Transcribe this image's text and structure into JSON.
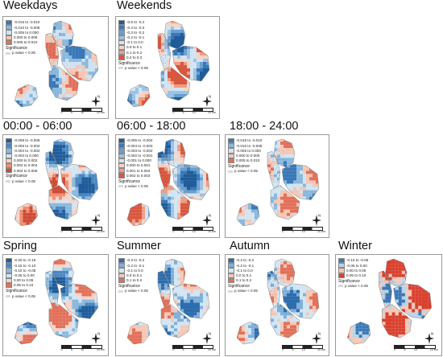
{
  "panels": [
    {
      "title": "Weekdays",
      "legend": [
        "-0.015 to -0.010",
        "-0.010 to -0.005",
        "-0.005 to 0.000",
        "0.000 to 0.005",
        "0.005 to 0.010"
      ],
      "colors": [
        "#3a78b8",
        "#8ab8dd",
        "#cfe2f1",
        "#f6c7b5",
        "#e2715a"
      ],
      "significance_title": "Significance",
      "significance_label": "p value < 0.05",
      "north": "N",
      "scale": [
        "0",
        "5",
        "10",
        "20 km"
      ]
    },
    {
      "title": "Weekends",
      "legend": [
        "-0.5 to -0.4",
        "-0.4 to -0.3",
        "-0.3 to -0.2",
        "-0.2 to -0.1",
        "-0.1 to 0.0",
        "0.0 to 0.1",
        "0.1 to 0.2",
        "0.2 to 0.3"
      ],
      "colors": [
        "#1f5c99",
        "#3a78b8",
        "#6a9fcf",
        "#9cc3e3",
        "#d2e5f3",
        "#f7d3c5",
        "#ef9c84",
        "#d9573f"
      ],
      "significance_title": "Significance",
      "significance_label": "p value < 0.05",
      "north": "N",
      "scale": [
        "0",
        "5",
        "10",
        "20 km"
      ]
    },
    {
      "title": "00:00 - 06:00",
      "legend": [
        "-0.008 to -0.006",
        "-0.006 to -0.004",
        "-0.004 to -0.002",
        "-0.002 to 0.000",
        "0.000 to 0.002",
        "0.002 to 0.004",
        "0.004 to 0.006"
      ],
      "colors": [
        "#1f5c99",
        "#4a87c2",
        "#8ab8dd",
        "#d2e5f3",
        "#f7d3c5",
        "#ec8f74",
        "#cf4a35"
      ],
      "significance_title": "Significance",
      "significance_label": "p value < 0.05",
      "north": "N",
      "scale": [
        "0",
        "5",
        "10",
        "20 km"
      ]
    },
    {
      "title": "06:00 - 18:00",
      "legend": [
        "-0.005 to -0.004",
        "-0.004 to -0.003",
        "-0.003 to -0.002",
        "-0.002 to -0.001",
        "-0.001 to 0.000",
        "0.000 to 0.001",
        "0.001 to 0.002",
        "0.002 to 0.003"
      ],
      "colors": [
        "#1f5c99",
        "#3a78b8",
        "#6a9fcf",
        "#9cc3e3",
        "#d2e5f3",
        "#f7d3c5",
        "#ef9c84",
        "#d9573f"
      ],
      "significance_title": "Significance",
      "significance_label": "p value < 0.05",
      "north": "N",
      "scale": [
        "0",
        "5",
        "10",
        "20 km"
      ]
    },
    {
      "title": "18:00 - 24:00",
      "legend": [
        "-0.015 to -0.010",
        "-0.010 to -0.005",
        "-0.005 to 0.000",
        "0.000 to 0.005",
        "0.005 to 0.010"
      ],
      "colors": [
        "#3a78b8",
        "#8ab8dd",
        "#d2e5f3",
        "#f6c7b5",
        "#e2715a"
      ],
      "significance_title": "Significance",
      "significance_label": "p value < 0.05",
      "north": "N",
      "scale": [
        "0",
        "5",
        "10",
        "20 km"
      ]
    },
    {
      "title": "Spring",
      "legend": [
        "-0.20 to -0.15",
        "-0.15 to -0.10",
        "-0.10 to -0.05",
        "-0.05 to 0.00",
        "0.00 to 0.05",
        "0.05 to 0.10"
      ],
      "colors": [
        "#1f5c99",
        "#4a87c2",
        "#8ab8dd",
        "#d2e5f3",
        "#f7d3c5",
        "#e2715a"
      ],
      "significance_title": "Significance",
      "significance_label": "p value < 0.05",
      "north": "N",
      "scale": [
        "0",
        "5",
        "10",
        "20 km"
      ]
    },
    {
      "title": "Summer",
      "legend": [
        "-0.3 to -0.2",
        "-0.2 to -0.1",
        "-0.1 to 0.0",
        "0.0 to 0.1",
        "0.1 to 0.2"
      ],
      "colors": [
        "#2e6dad",
        "#7fb0da",
        "#d2e5f3",
        "#f6c7b5",
        "#e2715a"
      ],
      "significance_title": "Significance",
      "significance_label": "p value < 0.05",
      "north": "N",
      "scale": [
        "0",
        "5",
        "10",
        "20 km"
      ]
    },
    {
      "title": "Autumn",
      "legend": [
        "-0.3 to -0.2",
        "-0.2 to -0.1",
        "-0.1 to 0.0",
        "0.0 to 0.1",
        "0.1 to 0.2"
      ],
      "colors": [
        "#2e6dad",
        "#7fb0da",
        "#d2e5f3",
        "#f6c7b5",
        "#e2715a"
      ],
      "significance_title": "Significance",
      "significance_label": "p value < 0.05",
      "north": "N",
      "scale": [
        "0",
        "5",
        "10",
        "20 km"
      ]
    },
    {
      "title": "Winter",
      "legend": [
        "-0.10 to -0.05",
        "-0.05 to 0.00",
        "0.00 to 0.05",
        "0.05 to 0.10"
      ],
      "colors": [
        "#3a78b8",
        "#b7d4ec",
        "#f6c7b5",
        "#d9402e"
      ],
      "significance_title": "Significance",
      "significance_label": "p value < 0.05",
      "north": "N",
      "scale": [
        "0",
        "5",
        "10",
        "20 km"
      ]
    }
  ]
}
